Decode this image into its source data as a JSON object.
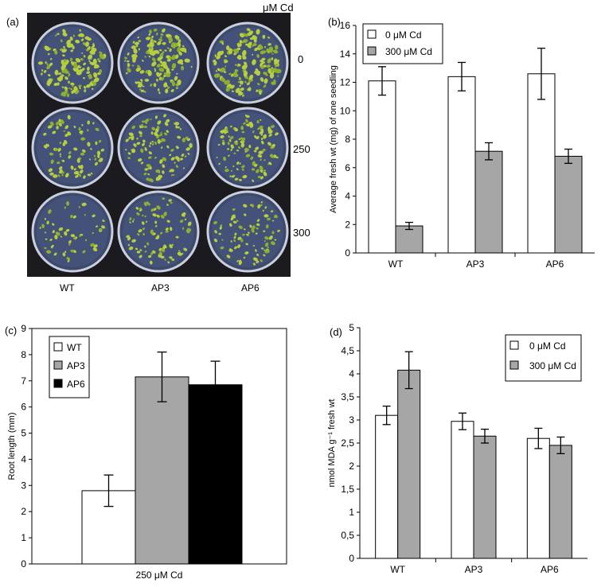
{
  "panel_a": {
    "label": "(a)",
    "unit_label": "μM Cd",
    "row_labels": [
      "0",
      "250",
      "300"
    ],
    "col_labels": [
      "WT",
      "AP3",
      "AP6"
    ],
    "seedling_density": [
      [
        1.0,
        1.0,
        1.0
      ],
      [
        0.55,
        0.75,
        0.8
      ],
      [
        0.35,
        0.6,
        0.55
      ]
    ]
  },
  "chart_data": [
    {
      "panel": "(b)",
      "type": "bar",
      "categories": [
        "WT",
        "AP3",
        "AP6"
      ],
      "series": [
        {
          "name": "0 μM Cd",
          "values": [
            12.1,
            12.4,
            12.6
          ],
          "errors": [
            1.0,
            1.0,
            1.8
          ],
          "color": "#ffffff"
        },
        {
          "name": "300 μM Cd",
          "values": [
            1.9,
            7.15,
            6.8
          ],
          "errors": [
            0.25,
            0.6,
            0.5
          ],
          "color": "#a6a6a6"
        }
      ],
      "ylabel": "Average fresh wt (mg) of one seedling",
      "xlabel": "",
      "ylim": [
        0,
        16
      ],
      "yticks": [
        "0",
        "2",
        "4",
        "6",
        "8",
        "10",
        "12",
        "14",
        "16"
      ],
      "legend_position": "top-left"
    },
    {
      "panel": "(c)",
      "type": "bar",
      "categories": [
        "WT",
        "AP3",
        "AP6"
      ],
      "values": [
        2.8,
        7.15,
        6.85
      ],
      "errors": [
        0.6,
        0.95,
        0.9
      ],
      "colors": [
        "#ffffff",
        "#a6a6a6",
        "#000000"
      ],
      "ylabel": "Root length (mm)",
      "xlabel": "250 μM Cd",
      "ylim": [
        0,
        9
      ],
      "yticks": [
        "0",
        "1",
        "2",
        "3",
        "4",
        "5",
        "6",
        "7",
        "8",
        "9"
      ],
      "legend_position": "top-left"
    },
    {
      "panel": "(d)",
      "type": "bar",
      "categories": [
        "WT",
        "AP3",
        "AP6"
      ],
      "series": [
        {
          "name": "0 μM Cd",
          "values": [
            3.1,
            2.97,
            2.6
          ],
          "errors": [
            0.2,
            0.18,
            0.22
          ],
          "color": "#ffffff"
        },
        {
          "name": "300 μM Cd",
          "values": [
            4.08,
            2.65,
            2.45
          ],
          "errors": [
            0.4,
            0.15,
            0.18
          ],
          "color": "#a6a6a6"
        }
      ],
      "ylabel": "nmol MDA g⁻¹ fresh wt",
      "xlabel": "",
      "ylim": [
        0,
        5
      ],
      "yticks": [
        "0",
        "0,5",
        "1",
        "1,5",
        "2",
        "2,5",
        "3",
        "3,5",
        "4",
        "4,5",
        "5"
      ],
      "legend_position": "top-right"
    }
  ]
}
